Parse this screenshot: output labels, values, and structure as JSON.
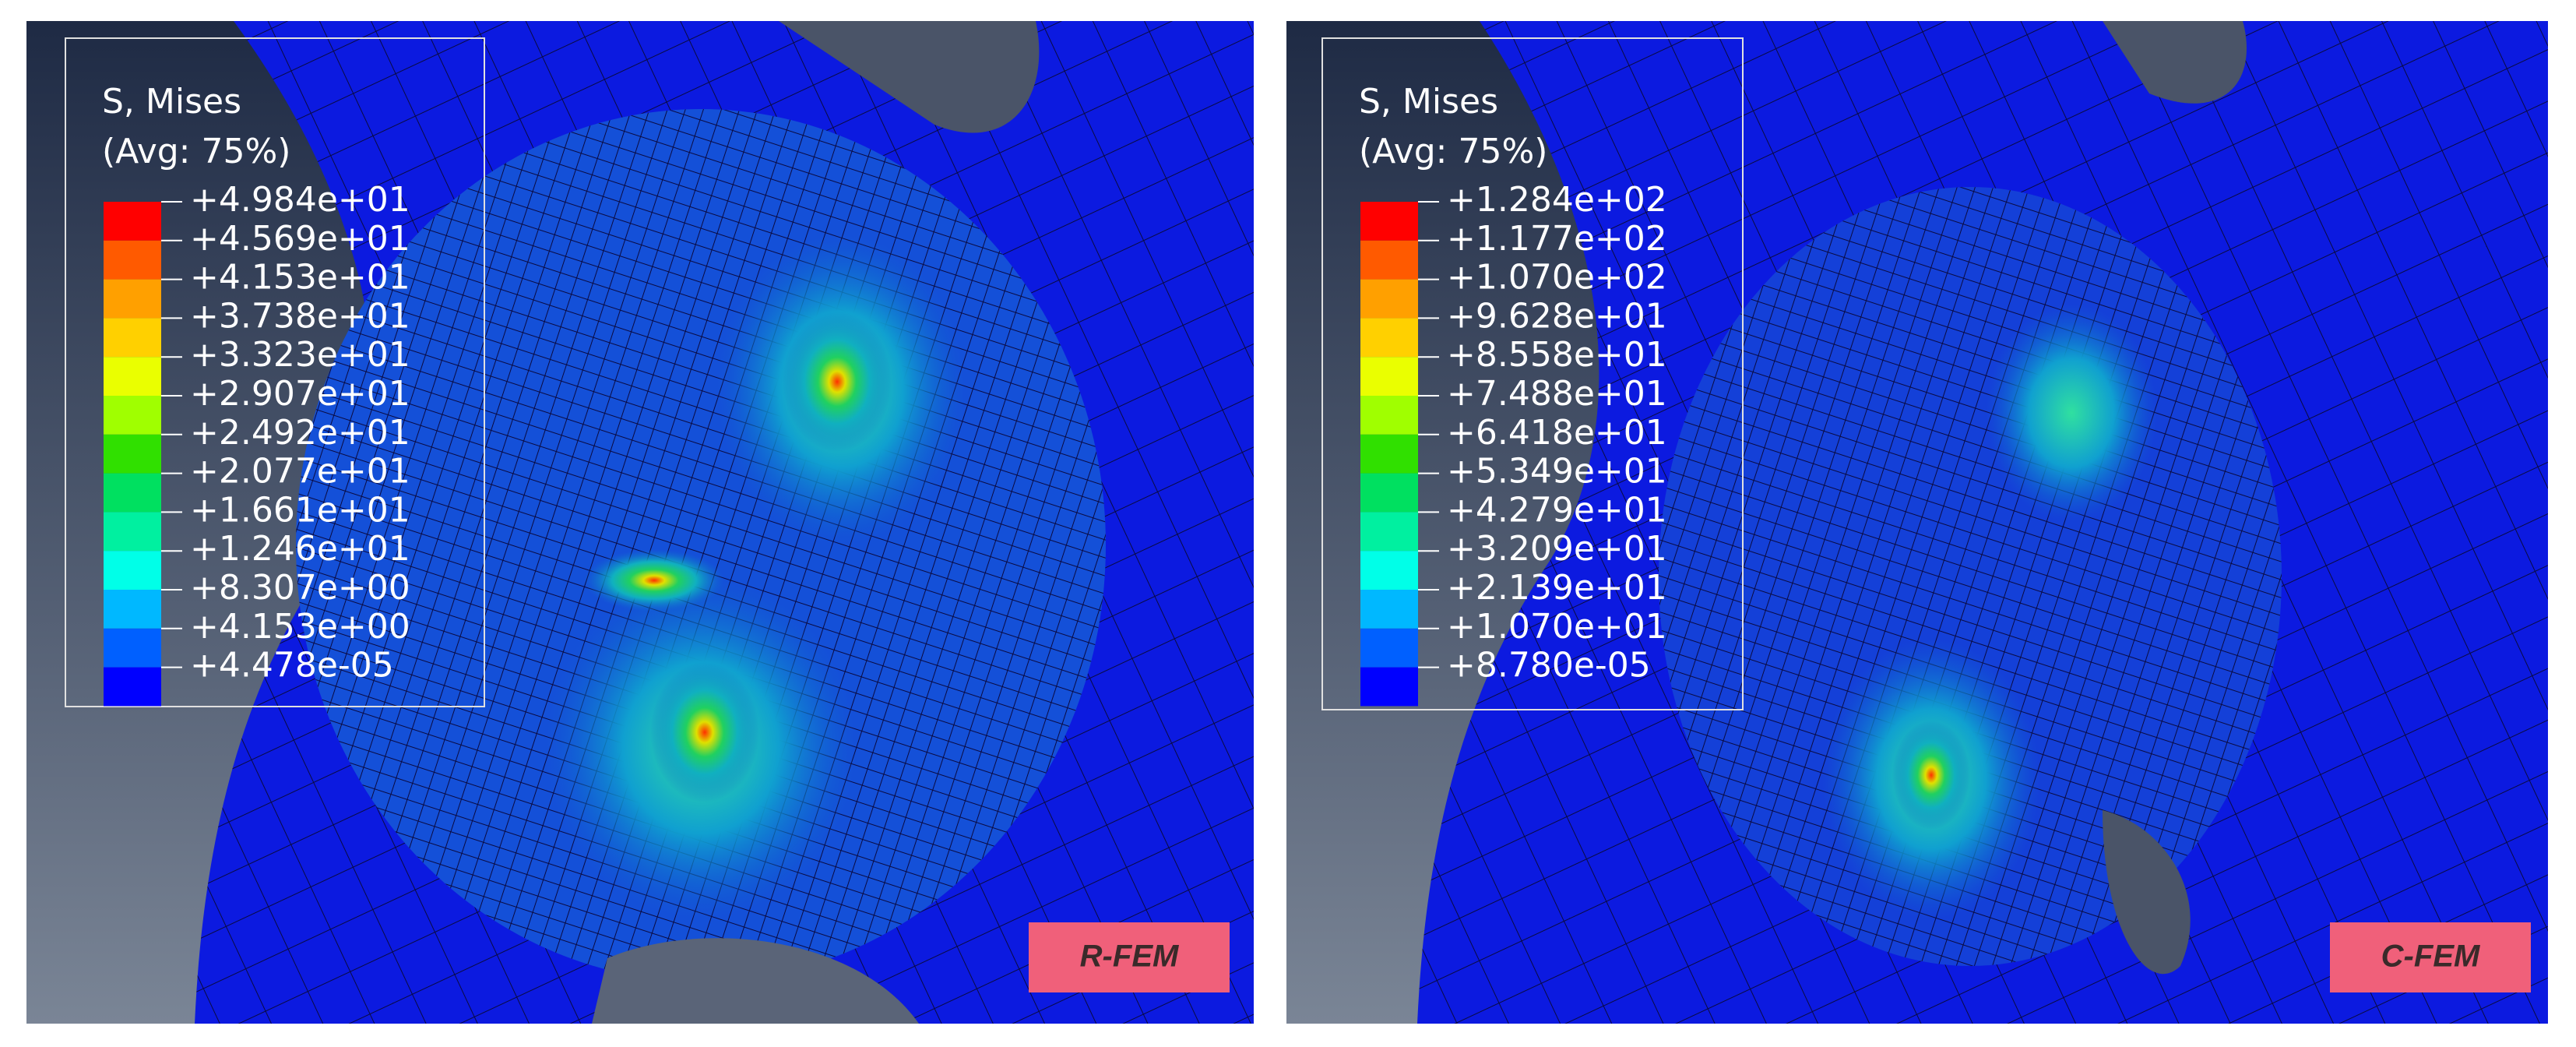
{
  "panels": [
    {
      "legend": {
        "title": "S, Mises",
        "subtitle": "(Avg: 75%)",
        "labels": [
          "+4.984e+01",
          "+4.569e+01",
          "+4.153e+01",
          "+3.738e+01",
          "+3.323e+01",
          "+2.907e+01",
          "+2.492e+01",
          "+2.077e+01",
          "+1.661e+01",
          "+1.246e+01",
          "+8.307e+00",
          "+4.153e+00",
          "+4.478e-05"
        ]
      },
      "badge": "R-FEM"
    },
    {
      "legend": {
        "title": "S, Mises",
        "subtitle": "(Avg: 75%)",
        "labels": [
          "+1.284e+02",
          "+1.177e+02",
          "+1.070e+02",
          "+9.628e+01",
          "+8.558e+01",
          "+7.488e+01",
          "+6.418e+01",
          "+5.349e+01",
          "+4.279e+01",
          "+3.209e+01",
          "+2.139e+01",
          "+1.070e+01",
          "+8.780e-05"
        ]
      },
      "badge": "C-FEM"
    }
  ]
}
